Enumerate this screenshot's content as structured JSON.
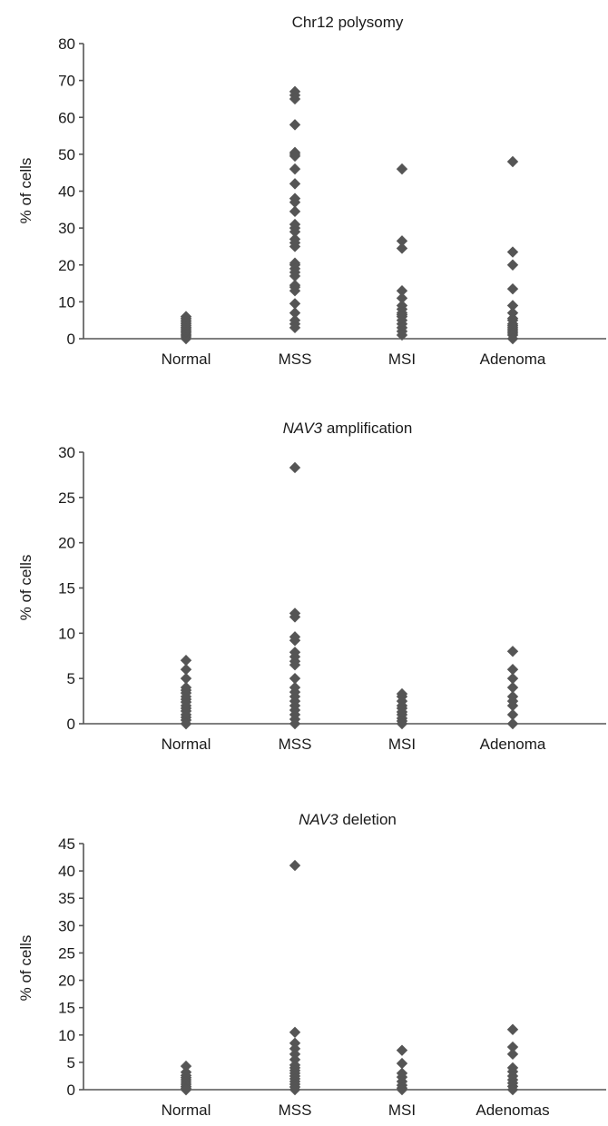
{
  "chart_data": [
    {
      "type": "scatter",
      "title_prefix": "",
      "title_italic": "",
      "title_rest": "Chr12 polysomy",
      "ylabel": "% of cells",
      "ylim": [
        0,
        80
      ],
      "yticks": [
        0,
        10,
        20,
        30,
        40,
        50,
        60,
        70,
        80
      ],
      "categories": [
        "Normal",
        "MSS",
        "MSI",
        "Adenoma"
      ],
      "grid": false,
      "point_color": "#555555",
      "values": [
        [
          0,
          0.5,
          1,
          1,
          1.5,
          2,
          2,
          2.5,
          3,
          3,
          3.5,
          4,
          4.5,
          5,
          5.5,
          6
        ],
        [
          67,
          66,
          65,
          58,
          50.5,
          50,
          49.5,
          46,
          42,
          38,
          37,
          34.5,
          31,
          30,
          29,
          27,
          26,
          25,
          20.5,
          20,
          19,
          18,
          17,
          14.5,
          14,
          13,
          9.5,
          7,
          5,
          4,
          3
        ],
        [
          46,
          26.5,
          24.5,
          13,
          11,
          9,
          8,
          7,
          6.5,
          6,
          5,
          4,
          3,
          2,
          1
        ],
        [
          48,
          23.5,
          20,
          13.5,
          9,
          7,
          5.5,
          5,
          4,
          3.5,
          3,
          2.5,
          2,
          1.5,
          1,
          0
        ]
      ]
    },
    {
      "type": "scatter",
      "title_prefix": "",
      "title_italic": "NAV3",
      "title_rest": " amplification",
      "ylabel": "% of cells",
      "ylim": [
        0,
        30
      ],
      "yticks": [
        0,
        5,
        10,
        15,
        20,
        25,
        30
      ],
      "categories": [
        "Normal",
        "MSS",
        "MSI",
        "Adenoma"
      ],
      "grid": false,
      "point_color": "#555555",
      "values": [
        [
          7,
          6,
          5,
          4,
          3.7,
          3.4,
          3,
          2.7,
          2.4,
          2,
          1.7,
          1.4,
          1,
          0.7,
          0.4,
          0,
          0
        ],
        [
          28.3,
          12.2,
          11.8,
          9.6,
          9.2,
          7.9,
          7.4,
          6.9,
          6.5,
          5,
          4,
          3.5,
          3,
          2.5,
          2,
          1.5,
          1,
          0.5,
          0
        ],
        [
          3.3,
          3,
          2.5,
          2,
          1.7,
          1.3,
          1,
          0.6,
          0.3,
          0
        ],
        [
          8,
          6,
          5,
          4,
          3,
          2.5,
          2,
          1,
          0
        ]
      ]
    },
    {
      "type": "scatter",
      "title_prefix": "",
      "title_italic": "NAV3",
      "title_rest": " deletion",
      "ylabel": "% of cells",
      "ylim": [
        0,
        45
      ],
      "yticks": [
        0,
        5,
        10,
        15,
        20,
        25,
        30,
        35,
        40,
        45
      ],
      "categories": [
        "Normal",
        "MSS",
        "MSI",
        "Adenomas"
      ],
      "grid": false,
      "point_color": "#555555",
      "values": [
        [
          4.3,
          3.2,
          2.6,
          2.2,
          1.8,
          1.4,
          1,
          0.6,
          0.3,
          0,
          0
        ],
        [
          41,
          10.5,
          8.5,
          7.5,
          6.5,
          5.5,
          4.5,
          4,
          3.5,
          3,
          2.5,
          2,
          1.5,
          1,
          0.5,
          0
        ],
        [
          7.2,
          4.8,
          3,
          2.3,
          1.5,
          0.8,
          0.3,
          0
        ],
        [
          11,
          7.8,
          6.5,
          4,
          3.3,
          2.5,
          1.8,
          1.2,
          0.6,
          0
        ]
      ]
    }
  ]
}
